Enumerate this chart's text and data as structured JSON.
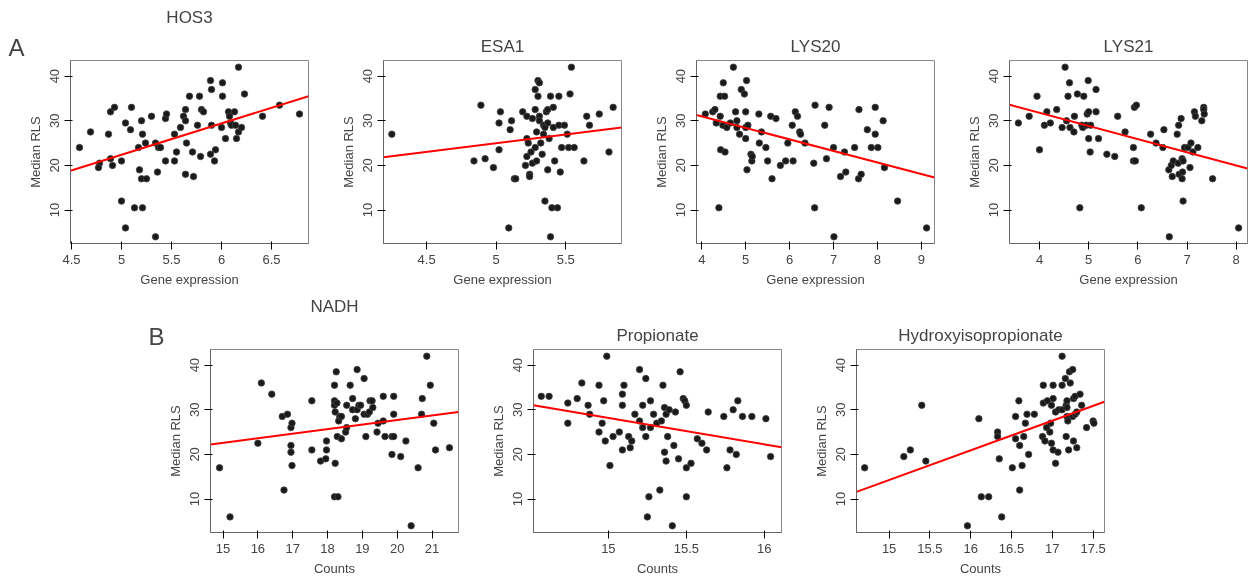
{
  "chart_data": [
    {
      "type": "scatter",
      "title": "HOS3",
      "xlabel": "Gene expression",
      "ylabel": "Median RLS",
      "annotations": [
        "A"
      ],
      "xlim": [
        4.49,
        6.87
      ],
      "ylim": [
        2.5,
        43.5
      ],
      "xticks": [
        4.5,
        5,
        5.5,
        6,
        6.5
      ],
      "yticks": [
        10,
        20,
        30,
        40
      ],
      "series": [
        {
          "marker": "circle",
          "color": "#1a1a1a",
          "x": [
            4.58,
            4.69,
            4.78,
            4.77,
            4.87,
            4.89,
            4.89,
            4.91,
            4.93,
            5.0,
            5.0,
            5.04,
            5.04,
            5.09,
            5.1,
            5.13,
            5.17,
            5.18,
            5.2,
            5.2,
            5.21,
            5.21,
            5.24,
            5.25,
            5.3,
            5.34,
            5.34,
            5.36,
            5.37,
            5.39,
            5.44,
            5.45,
            5.44,
            5.53,
            5.53,
            5.55,
            5.59,
            5.62,
            5.64,
            5.64,
            5.64,
            5.65,
            5.68,
            5.72,
            5.71,
            5.76,
            5.78,
            5.79,
            5.8,
            5.82,
            5.89,
            5.9,
            5.89,
            5.9,
            5.93,
            5.94,
            6.0,
            6.01,
            6.01,
            6.04,
            6.07,
            6.08,
            6.09,
            6.1,
            6.13,
            6.14,
            6.15,
            6.17,
            6.17,
            6.2,
            6.23,
            6.41,
            6.58,
            6.78
          ],
          "values": [
            24,
            27.5,
            20.5,
            19.5,
            27,
            32,
            21.5,
            20,
            33,
            21,
            12,
            6,
            29.5,
            28,
            33,
            10.5,
            24,
            19,
            30,
            17,
            10.5,
            27,
            25,
            17,
            31,
            4,
            25,
            18.5,
            24,
            24,
            30.5,
            31.5,
            21,
            27,
            21,
            23,
            28.5,
            31,
            30,
            32.5,
            18,
            25,
            35.5,
            17.5,
            23,
            29,
            35.5,
            22,
            32.5,
            32,
            39,
            37,
            22.5,
            29,
            21,
            23.5,
            28.5,
            38.5,
            35.5,
            26,
            32,
            31,
            29.5,
            29,
            32,
            29,
            26,
            42,
            27.5,
            28.5,
            36,
            31,
            33.5,
            31.5
          ]
        },
        {
          "type": "line",
          "color": "#ff0000",
          "x": [
            4.49,
            6.87
          ],
          "values": [
            18.8,
            35.5
          ]
        }
      ]
    },
    {
      "type": "scatter",
      "title": "ESA1",
      "xlabel": "Gene expression",
      "ylabel": "Median RLS",
      "xlim": [
        4.19,
        5.9
      ],
      "ylim": [
        2.5,
        43.5
      ],
      "xticks": [
        4.5,
        5,
        5.5
      ],
      "yticks": [
        10,
        20,
        30,
        40
      ],
      "series": [
        {
          "marker": "circle",
          "color": "#1a1a1a",
          "x": [
            4.25,
            4.84,
            4.89,
            4.92,
            4.98,
            5.02,
            5.02,
            5.03,
            5.09,
            5.1,
            5.11,
            5.13,
            5.14,
            5.19,
            5.21,
            5.22,
            5.22,
            5.22,
            5.23,
            5.24,
            5.24,
            5.25,
            5.26,
            5.26,
            5.28,
            5.28,
            5.28,
            5.29,
            5.29,
            5.3,
            5.3,
            5.31,
            5.31,
            5.31,
            5.32,
            5.33,
            5.34,
            5.34,
            5.35,
            5.35,
            5.36,
            5.37,
            5.37,
            5.37,
            5.38,
            5.39,
            5.39,
            5.4,
            5.41,
            5.41,
            5.42,
            5.44,
            5.45,
            5.45,
            5.46,
            5.47,
            5.49,
            5.51,
            5.52,
            5.53,
            5.54,
            5.56,
            5.63,
            5.65,
            5.67,
            5.74,
            5.81,
            5.84
          ],
          "values": [
            27,
            21,
            33.5,
            21.5,
            19.5,
            29.5,
            23.5,
            32,
            6,
            28,
            30,
            17,
            17,
            32,
            20,
            31,
            26,
            22,
            25,
            18,
            17.5,
            23,
            30.5,
            20.5,
            37,
            32.5,
            24,
            27.5,
            21,
            39,
            35.5,
            38.5,
            31,
            30,
            25,
            22.5,
            27,
            29,
            12,
            28.5,
            32,
            32.5,
            29.5,
            19,
            26,
            35.5,
            4,
            10.5,
            28.5,
            33,
            21,
            10.5,
            35.5,
            29,
            18.5,
            24,
            29,
            27,
            24,
            36,
            42,
            24,
            21,
            31,
            29,
            31.5,
            23,
            33
          ]
        },
        {
          "type": "line",
          "color": "#ff0000",
          "x": [
            4.19,
            5.9
          ],
          "values": [
            21.8,
            28.5
          ]
        }
      ]
    },
    {
      "type": "scatter",
      "title": "LYS20",
      "xlabel": "Gene expression",
      "ylabel": "Median RLS",
      "xlim": [
        3.88,
        9.3
      ],
      "ylim": [
        2.5,
        43.5
      ],
      "xticks": [
        4,
        5,
        6,
        7,
        8,
        9
      ],
      "yticks": [
        10,
        20,
        30,
        40
      ],
      "series": [
        {
          "marker": "circle",
          "color": "#1a1a1a",
          "x": [
            4.08,
            4.25,
            4.3,
            4.33,
            4.39,
            4.42,
            4.42,
            4.43,
            4.48,
            4.49,
            4.52,
            4.53,
            4.57,
            4.65,
            4.72,
            4.77,
            4.8,
            4.8,
            4.86,
            4.9,
            4.97,
            5.0,
            5.0,
            5.0,
            5.02,
            5.03,
            5.05,
            5.12,
            5.14,
            5.15,
            5.3,
            5.31,
            5.36,
            5.46,
            5.5,
            5.57,
            5.6,
            5.69,
            5.79,
            5.91,
            5.96,
            6.06,
            6.08,
            6.13,
            6.18,
            6.23,
            6.25,
            6.35,
            6.55,
            6.57,
            6.58,
            6.8,
            6.84,
            6.9,
            7.0,
            7.01,
            7.16,
            7.25,
            7.28,
            7.48,
            7.57,
            7.58,
            7.63,
            7.77,
            7.86,
            7.95,
            7.95,
            8.01,
            8.13,
            8.16,
            8.46,
            9.12
          ],
          "values": [
            31.5,
            32,
            32.5,
            29.5,
            10.5,
            35.5,
            31,
            23.5,
            29,
            38.5,
            35.5,
            23,
            28.5,
            29.5,
            42,
            32,
            30,
            28.5,
            27,
            37,
            36,
            32,
            28.5,
            26,
            39,
            19,
            29,
            22.5,
            21,
            22,
            31.5,
            25,
            27.5,
            24,
            21,
            31,
            17,
            30.5,
            20,
            21,
            25,
            29,
            21,
            32,
            31,
            27.5,
            27,
            25,
            20.5,
            10.5,
            33.5,
            29,
            21.5,
            33,
            24,
            4,
            17.5,
            23,
            18.5,
            24,
            17,
            32.5,
            18,
            28,
            24,
            33,
            27,
            24,
            30,
            19.5,
            12,
            6
          ]
        },
        {
          "type": "line",
          "color": "#ff0000",
          "x": [
            3.88,
            9.3
          ],
          "values": [
            31.3,
            17.3
          ]
        }
      ]
    },
    {
      "type": "scatter",
      "title": "LYS21",
      "xlabel": "Gene expression",
      "ylabel": "Median RLS",
      "xlim": [
        3.39,
        8.23
      ],
      "ylim": [
        2.5,
        43.5
      ],
      "xticks": [
        4,
        5,
        6,
        7,
        8
      ],
      "yticks": [
        10,
        20,
        30,
        40
      ],
      "series": [
        {
          "marker": "circle",
          "color": "#1a1a1a",
          "x": [
            3.57,
            3.79,
            3.95,
            4.0,
            4.1,
            4.15,
            4.22,
            4.35,
            4.46,
            4.52,
            4.55,
            4.58,
            4.61,
            4.62,
            4.7,
            4.71,
            4.77,
            4.82,
            4.86,
            4.88,
            4.9,
            4.95,
            4.97,
            4.99,
            5.0,
            5.0,
            5.03,
            5.04,
            5.15,
            5.15,
            5.2,
            5.37,
            5.53,
            5.59,
            5.74,
            5.91,
            5.91,
            5.93,
            5.95,
            5.97,
            6.07,
            6.26,
            6.37,
            6.51,
            6.53,
            6.63,
            6.64,
            6.68,
            6.7,
            6.72,
            6.8,
            6.83,
            6.82,
            6.84,
            6.88,
            6.9,
            6.9,
            6.91,
            6.92,
            6.92,
            6.95,
            7.02,
            7.06,
            7.08,
            7.12,
            7.15,
            7.17,
            7.22,
            7.3,
            7.34,
            7.34,
            7.35,
            7.52,
            8.05
          ],
          "values": [
            29.5,
            31,
            35.5,
            23.5,
            29,
            32,
            29.5,
            32.5,
            28.5,
            42,
            30,
            35.5,
            38.5,
            28.5,
            27.5,
            31,
            36,
            10.5,
            29,
            28.5,
            35.5,
            29,
            31.5,
            39,
            32,
            26,
            23,
            29,
            37,
            32,
            26,
            22.5,
            22,
            31,
            27.5,
            24,
            21,
            33,
            21,
            33.5,
            10.5,
            27,
            25,
            24,
            28,
            19,
            4,
            20,
            17.5,
            21,
            27,
            29,
            20.5,
            18,
            30.5,
            17,
            21.5,
            18.5,
            21,
            12,
            24,
            24,
            19.5,
            25,
            23,
            32,
            31,
            24,
            30,
            33,
            32.5,
            31.5,
            17,
            6
          ]
        },
        {
          "type": "line",
          "color": "#ff0000",
          "x": [
            3.39,
            8.23
          ],
          "values": [
            33.6,
            19.3
          ]
        }
      ]
    },
    {
      "type": "scatter",
      "title": "NADH",
      "xlabel": "Counts",
      "ylabel": "Median RLS",
      "annotations": [
        "B"
      ],
      "xlim": [
        14.64,
        21.76
      ],
      "ylim": [
        2.5,
        43.5
      ],
      "xticks": [
        15,
        16,
        17,
        18,
        19,
        20,
        21
      ],
      "yticks": [
        10,
        20,
        30,
        40
      ],
      "series": [
        {
          "marker": "circle",
          "color": "#1a1a1a",
          "x": [
            14.9,
            15.2,
            16.0,
            16.1,
            16.4,
            16.7,
            16.75,
            16.85,
            16.95,
            16.98,
            16.95,
            16.95,
            16.98,
            17.55,
            17.55,
            17.8,
            17.95,
            17.97,
            17.97,
            18.2,
            18.2,
            18.2,
            18.22,
            18.22,
            18.2,
            18.3,
            18.25,
            18.27,
            18.28,
            18.32,
            18.35,
            18.4,
            18.4,
            18.52,
            18.55,
            18.55,
            18.65,
            18.72,
            18.72,
            18.8,
            18.85,
            18.85,
            18.9,
            18.95,
            19.05,
            19.05,
            19.1,
            19.15,
            19.2,
            19.22,
            19.28,
            19.3,
            19.42,
            19.45,
            19.6,
            19.6,
            19.65,
            19.85,
            19.85,
            19.9,
            19.9,
            19.9,
            20.1,
            20.25,
            20.4,
            20.6,
            20.7,
            20.72,
            20.85,
            20.95,
            21.05,
            21.1,
            21.5
          ],
          "values": [
            17,
            6,
            22.5,
            36,
            33.5,
            28.5,
            12,
            29,
            26,
            27,
            22,
            20.5,
            17.5,
            32,
            21,
            18.5,
            19,
            23,
            21,
            32,
            31,
            35.5,
            29.5,
            18,
            10.5,
            10.5,
            38.5,
            31.5,
            24,
            27.5,
            28.5,
            28.5,
            23.5,
            25,
            26,
            31,
            35.5,
            32.5,
            30,
            28,
            30,
            39,
            31,
            31,
            29,
            37,
            24,
            29,
            29.5,
            32,
            32,
            30.5,
            25,
            27,
            33,
            27.5,
            24,
            20,
            24,
            24,
            29,
            33,
            19.5,
            23,
            4,
            17,
            29,
            32.5,
            42,
            35.5,
            27,
            21,
            21.5
          ]
        },
        {
          "type": "line",
          "color": "#ff0000",
          "x": [
            14.64,
            21.76
          ],
          "values": [
            22.2,
            29.5
          ]
        }
      ]
    },
    {
      "type": "scatter",
      "title": "Propionate",
      "xlabel": "Counts",
      "ylabel": "Median RLS",
      "xlim": [
        14.52,
        16.11
      ],
      "ylim": [
        2.5,
        43.5
      ],
      "xticks": [
        15,
        15.5,
        16
      ],
      "yticks": [
        10,
        20,
        30,
        40
      ],
      "series": [
        {
          "marker": "circle",
          "color": "#1a1a1a",
          "x": [
            14.57,
            14.62,
            14.74,
            14.74,
            14.8,
            14.83,
            14.87,
            14.88,
            14.94,
            14.94,
            14.96,
            14.97,
            14.98,
            14.99,
            15.01,
            15.03,
            15.07,
            15.09,
            15.09,
            15.09,
            15.1,
            15.13,
            15.14,
            15.15,
            15.17,
            15.2,
            15.2,
            15.22,
            15.22,
            15.24,
            15.24,
            15.25,
            15.26,
            15.27,
            15.27,
            15.29,
            15.31,
            15.33,
            15.34,
            15.35,
            15.36,
            15.36,
            15.37,
            15.37,
            15.38,
            15.39,
            15.41,
            15.42,
            15.43,
            15.45,
            15.46,
            15.48,
            15.49,
            15.5,
            15.5,
            15.5,
            15.53,
            15.57,
            15.6,
            15.63,
            15.64,
            15.74,
            15.76,
            15.78,
            15.8,
            15.82,
            15.83,
            15.86,
            15.92,
            16.01,
            16.04
          ],
          "values": [
            33,
            33,
            31.5,
            27,
            32.5,
            36,
            31,
            29,
            35.5,
            25,
            27,
            32,
            23,
            42,
            17.5,
            24,
            25,
            21,
            31,
            33.5,
            35.5,
            24,
            21.5,
            23,
            29,
            39,
            27.5,
            31,
            26,
            37,
            24,
            6,
            10.5,
            32,
            26,
            29,
            27,
            12,
            27.5,
            35.5,
            30.5,
            20.5,
            18.5,
            29,
            24,
            30,
            4,
            22,
            29.5,
            19,
            38.5,
            32.5,
            32,
            31,
            10.5,
            17,
            18,
            23.5,
            22.5,
            21,
            29.5,
            28.5,
            17,
            21,
            30,
            20,
            32,
            28.5,
            28.5,
            28,
            19.5
          ]
        },
        {
          "type": "line",
          "color": "#ff0000",
          "x": [
            14.52,
            16.11
          ],
          "values": [
            31,
            21.6
          ]
        }
      ]
    },
    {
      "type": "scatter",
      "title": "Hydroxyisopropionate",
      "xlabel": "Counts",
      "ylabel": "Median RLS",
      "xlim": [
        14.6,
        17.64
      ],
      "ylim": [
        2.5,
        43.5
      ],
      "xticks": [
        15,
        15.5,
        16,
        16.5,
        17,
        17.5
      ],
      "yticks": [
        10,
        20,
        30,
        40
      ],
      "series": [
        {
          "marker": "circle",
          "color": "#1a1a1a",
          "x": [
            14.7,
            15.18,
            15.26,
            15.4,
            15.45,
            15.96,
            16.1,
            16.13,
            16.22,
            16.33,
            16.33,
            16.35,
            16.38,
            16.51,
            16.55,
            16.55,
            16.59,
            16.6,
            16.6,
            16.63,
            16.65,
            16.67,
            16.69,
            16.71,
            16.78,
            16.88,
            16.89,
            16.89,
            16.91,
            16.93,
            16.94,
            16.97,
            16.99,
            16.99,
            16.98,
            17.01,
            17.01,
            17.01,
            17.04,
            17.04,
            17.07,
            17.08,
            17.12,
            17.12,
            17.12,
            17.16,
            17.17,
            17.17,
            17.18,
            17.18,
            17.18,
            17.19,
            17.2,
            17.21,
            17.22,
            17.25,
            17.25,
            17.26,
            17.26,
            17.28,
            17.28,
            17.3,
            17.3,
            17.34,
            17.36,
            17.42,
            17.5,
            17.51
          ],
          "values": [
            17,
            19.5,
            21,
            31,
            18.5,
            4,
            28,
            10.5,
            10.5,
            25,
            24,
            19,
            6,
            17,
            28.5,
            23.5,
            32,
            12,
            22,
            17.5,
            24,
            27,
            29,
            20,
            29,
            24,
            35.5,
            31.5,
            23,
            26,
            32,
            25,
            22.5,
            31,
            27,
            35.5,
            32.5,
            21,
            18,
            29.5,
            20.5,
            30,
            42,
            35.5,
            30,
            37,
            24,
            31,
            32,
            30.5,
            28.5,
            27.5,
            21,
            38.5,
            36,
            28.5,
            39,
            32.5,
            23,
            33,
            29,
            29.5,
            21.5,
            33.5,
            31,
            26,
            27.5,
            27
          ]
        },
        {
          "type": "line",
          "color": "#ff0000",
          "x": [
            14.6,
            17.64
          ],
          "values": [
            11.6,
            31.8
          ]
        }
      ]
    }
  ]
}
